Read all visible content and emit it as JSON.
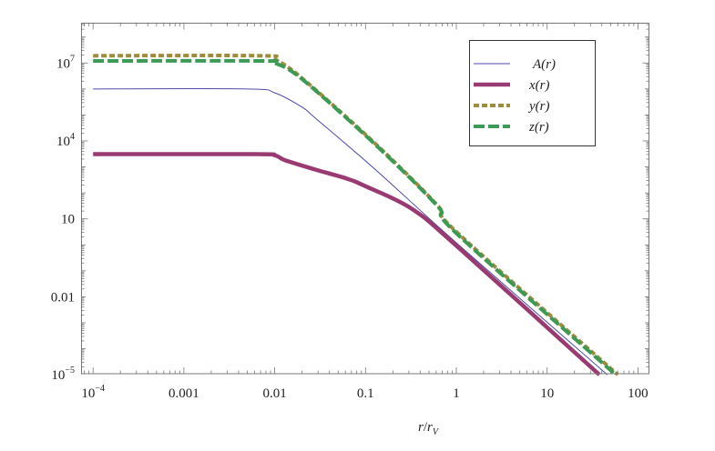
{
  "chart_data": {
    "type": "line",
    "xlabel": "r/r_V",
    "xlabel_parts": {
      "main": "r",
      "slash": "/",
      "base": "r",
      "sub": "V"
    },
    "ylabel": "",
    "xscale": "log",
    "yscale": "log",
    "xlim": [
      7e-05,
      130
    ],
    "ylim": [
      1e-05,
      350000000
    ],
    "grid": false,
    "legend_position": "top-right",
    "x_ticks": [
      {
        "value": 0.0001,
        "label": "10",
        "sup": "−4"
      },
      {
        "value": 0.001,
        "label": "0.001",
        "sup": ""
      },
      {
        "value": 0.01,
        "label": "0.01",
        "sup": ""
      },
      {
        "value": 0.1,
        "label": "0.1",
        "sup": ""
      },
      {
        "value": 1,
        "label": "1",
        "sup": ""
      },
      {
        "value": 10,
        "label": "10",
        "sup": ""
      },
      {
        "value": 100,
        "label": "100",
        "sup": ""
      }
    ],
    "y_ticks": [
      {
        "value": 1e-05,
        "label": "10",
        "sup": "−5"
      },
      {
        "value": 0.01,
        "label": "0.01",
        "sup": ""
      },
      {
        "value": 10,
        "label": "10",
        "sup": ""
      },
      {
        "value": 10000,
        "label": "10",
        "sup": "4"
      },
      {
        "value": 10000000,
        "label": "10",
        "sup": "7"
      }
    ],
    "series": [
      {
        "name": "A(r)",
        "style": "thin-solid",
        "color": "#4b4bab",
        "x": [
          0.0001,
          0.005,
          0.01,
          0.02,
          0.028,
          0.13,
          1,
          46
        ],
        "y": [
          1000000,
          1000000,
          710000,
          200000,
          76000,
          760,
          1.2,
          1e-05
        ]
      },
      {
        "name": "x(r)",
        "style": "thick-solid",
        "color": "#993a72",
        "x": [
          0.0001,
          0.006,
          0.01,
          0.013,
          0.028,
          0.062,
          0.1,
          0.32,
          1,
          37.6
        ],
        "y": [
          3100,
          3100,
          2800,
          1800,
          790,
          355,
          180,
          25,
          0.93,
          1e-05
        ]
      },
      {
        "name": "y(r)",
        "style": "dotted",
        "color": "#a08a3c",
        "x": [
          0.0001,
          0.007,
          0.01,
          0.02,
          0.13,
          0.62,
          1,
          60
        ],
        "y": [
          19000000,
          19000000,
          14000000,
          2600000,
          7500,
          33,
          3.2,
          1e-05
        ]
      },
      {
        "name": "z(r)",
        "style": "dashed",
        "color": "#3c9a55",
        "x": [
          0.0001,
          0.007,
          0.01,
          0.02,
          0.13,
          0.62,
          1,
          57
        ],
        "y": [
          12000000,
          12000000,
          10000000,
          2400000,
          6900,
          31,
          2.8,
          1e-05
        ]
      }
    ]
  }
}
